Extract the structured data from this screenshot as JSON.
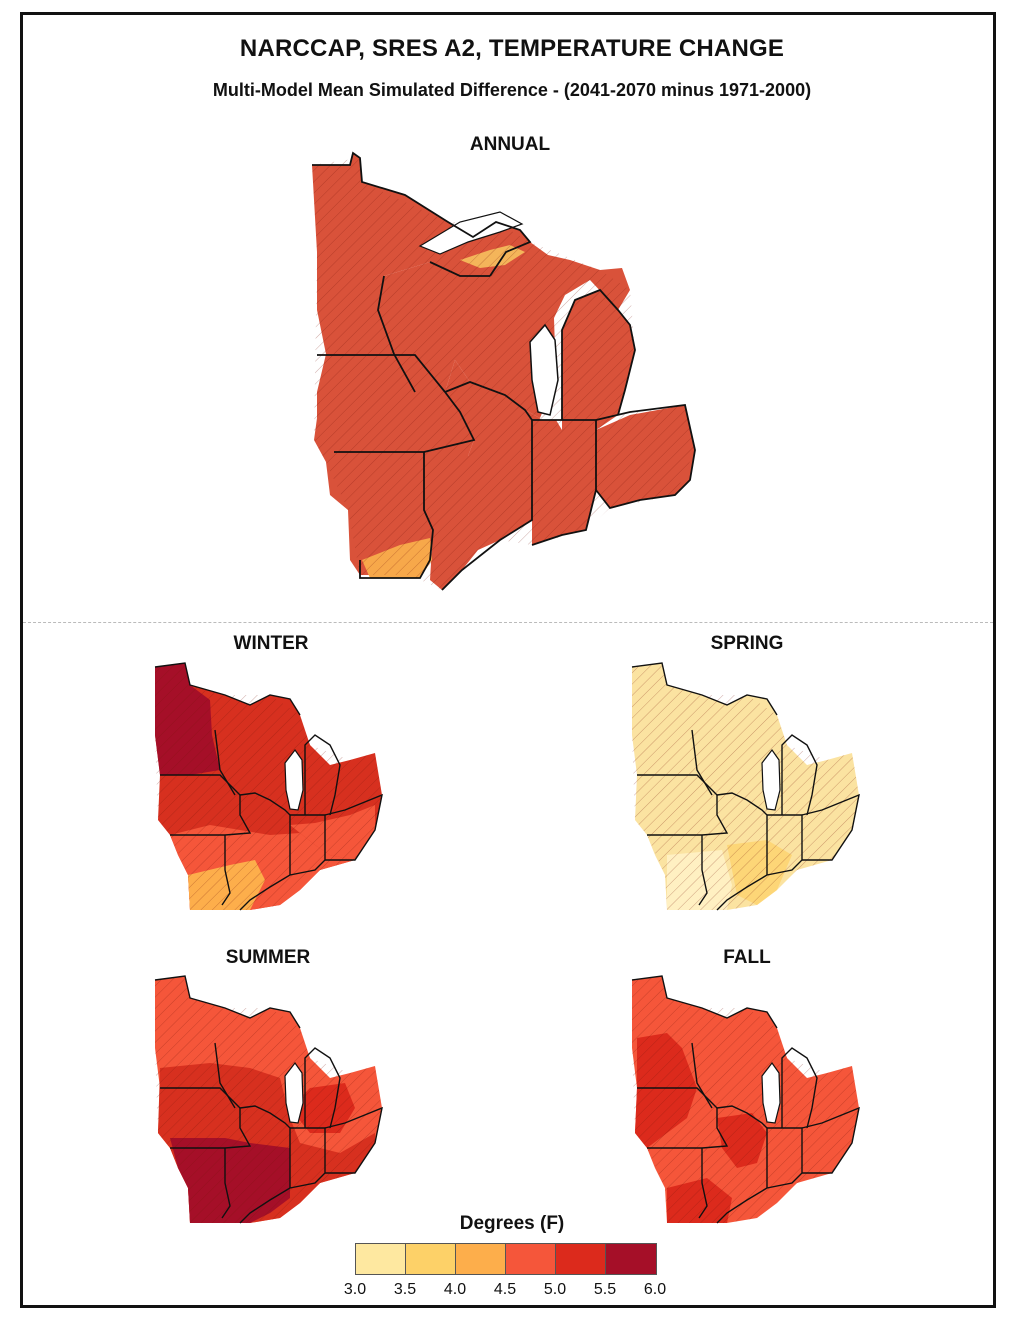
{
  "title": "NARCCAP, SRES A2, TEMPERATURE CHANGE",
  "subtitle": "Multi-Model Mean Simulated Difference - (2041-2070 minus 1971-2000)",
  "panels": [
    {
      "label": "ANNUAL",
      "dominant_bin": "5.0-5.5",
      "base_color": "#d9523a"
    },
    {
      "label": "WINTER",
      "dominant_bin": "5.0-5.5",
      "base_color": "#d7301f"
    },
    {
      "label": "SPRING",
      "dominant_bin": "3.0-3.5",
      "base_color": "#fbe3a1"
    },
    {
      "label": "SUMMER",
      "dominant_bin": "5.5-6.0",
      "base_color": "#e03a24"
    },
    {
      "label": "FALL",
      "dominant_bin": "4.5-5.0",
      "base_color": "#e8502f"
    }
  ],
  "legend": {
    "title": "Degrees (F)",
    "ticks": [
      "3.0",
      "3.5",
      "4.0",
      "4.5",
      "5.0",
      "5.5",
      "6.0"
    ],
    "colors": [
      "#fee8a0",
      "#fdd168",
      "#fdae4b",
      "#f5563a",
      "#dc2a1c",
      "#a50f28"
    ]
  },
  "colors": {
    "outline": "#111111",
    "hatch": "#8a1a10",
    "lake": "#ffffff",
    "gray_edge": "#cfcfcf"
  }
}
